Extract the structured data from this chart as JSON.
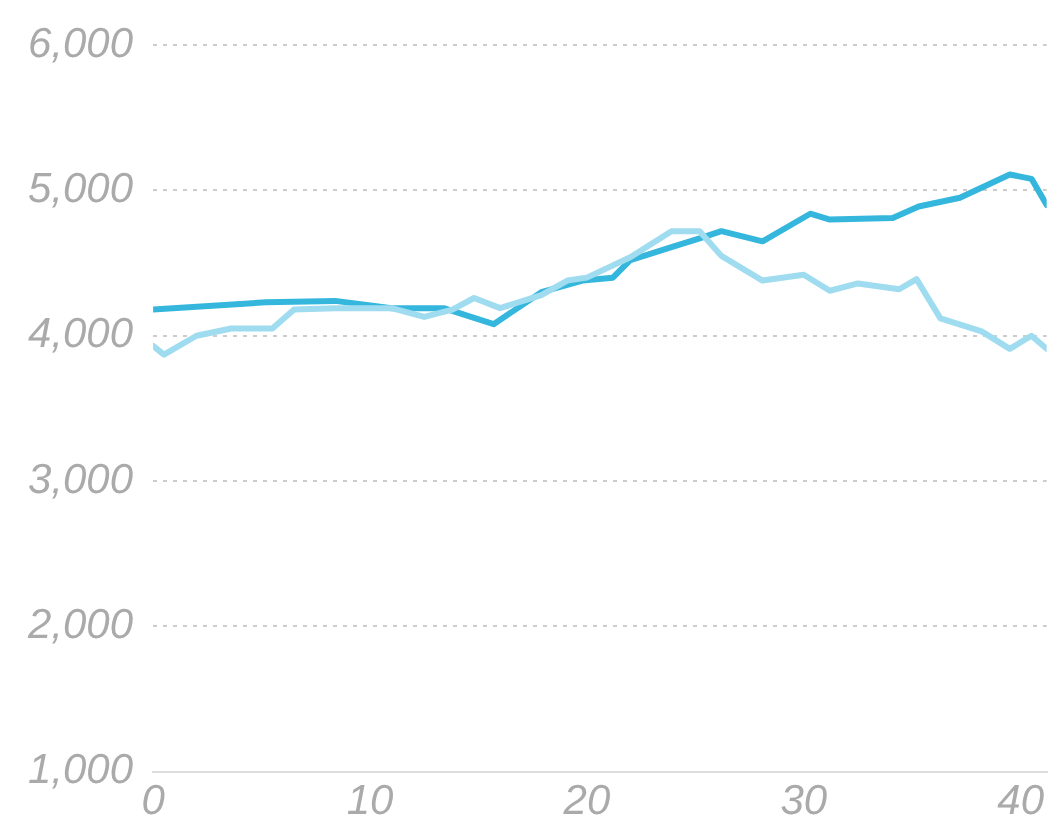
{
  "chart_data": {
    "type": "line",
    "xlim": [
      0,
      41.2
    ],
    "ylim": [
      1000,
      6000
    ],
    "xticks": [
      0,
      10,
      20,
      30,
      40
    ],
    "yticks": [
      {
        "value": 1000,
        "label": "1,000"
      },
      {
        "value": 2000,
        "label": "2,000"
      },
      {
        "value": 3000,
        "label": "3,000"
      },
      {
        "value": 4000,
        "label": "4,000"
      },
      {
        "value": 5000,
        "label": "5,000"
      },
      {
        "value": 6000,
        "label": "6,000"
      }
    ],
    "grid": "y",
    "marker": "none",
    "line_style": "solid",
    "legend": false,
    "series": [
      {
        "color": "#9fdcef",
        "x": [
          0,
          0.5,
          2,
          3.6,
          5.5,
          6.5,
          8.4,
          11,
          12.5,
          13.8,
          14.8,
          16,
          17.9,
          19.1,
          20,
          22,
          23.9,
          25.2,
          26.2,
          28.1,
          30,
          31.2,
          32.5,
          34.4,
          35.2,
          36.3,
          38.2,
          39.5,
          40.5,
          41.2
        ],
        "values": [
          3930,
          3870,
          4000,
          4050,
          4050,
          4180,
          4190,
          4190,
          4130,
          4180,
          4260,
          4190,
          4280,
          4380,
          4400,
          4540,
          4720,
          4720,
          4550,
          4380,
          4420,
          4310,
          4360,
          4320,
          4390,
          4120,
          4030,
          3910,
          4000,
          3910
        ]
      },
      {
        "color": "#35b6dc",
        "x": [
          0,
          5.2,
          8.4,
          11,
          13.4,
          15.7,
          17.9,
          19.8,
          21.2,
          22,
          23.9,
          25.2,
          26.2,
          28.1,
          30.3,
          31.2,
          34.1,
          35.3,
          37.2,
          39.5,
          40.5,
          41.2
        ],
        "values": [
          4180,
          4230,
          4240,
          4190,
          4190,
          4080,
          4300,
          4380,
          4400,
          4520,
          4610,
          4670,
          4720,
          4650,
          4840,
          4800,
          4810,
          4890,
          4950,
          5110,
          5080,
          4900
        ]
      }
    ]
  }
}
